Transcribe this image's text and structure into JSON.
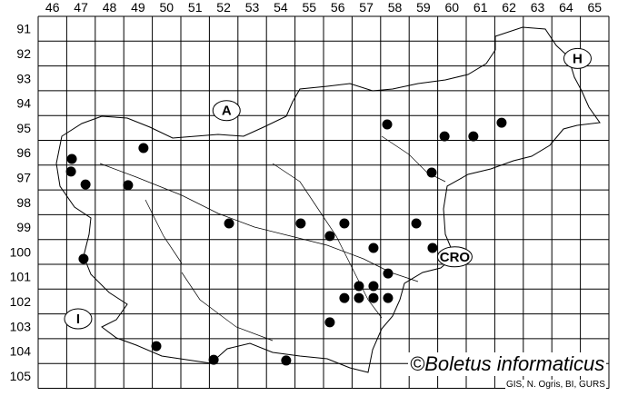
{
  "grid": {
    "columns": [
      "46",
      "47",
      "48",
      "49",
      "50",
      "51",
      "52",
      "53",
      "54",
      "55",
      "56",
      "57",
      "58",
      "59",
      "60",
      "61",
      "62",
      "63",
      "64",
      "65"
    ],
    "rows": [
      "91",
      "92",
      "93",
      "94",
      "95",
      "96",
      "97",
      "98",
      "99",
      "100",
      "101",
      "102",
      "103",
      "104",
      "105"
    ]
  },
  "country_labels": [
    {
      "text": "A",
      "col": 52.6,
      "row": 94.8
    },
    {
      "text": "H",
      "col": 64.9,
      "row": 92.7
    },
    {
      "text": "CRO",
      "col": 60.6,
      "row": 100.7
    },
    {
      "text": "I",
      "col": 47.4,
      "row": 103.2
    }
  ],
  "records": [
    {
      "col": 58.23,
      "row": 95.36
    },
    {
      "col": 60.24,
      "row": 95.84
    },
    {
      "col": 61.25,
      "row": 95.84
    },
    {
      "col": 62.24,
      "row": 95.29
    },
    {
      "col": 49.69,
      "row": 96.31
    },
    {
      "col": 47.18,
      "row": 96.75
    },
    {
      "col": 47.15,
      "row": 97.26
    },
    {
      "col": 47.66,
      "row": 97.78
    },
    {
      "col": 49.15,
      "row": 97.81
    },
    {
      "col": 59.79,
      "row": 97.3
    },
    {
      "col": 52.69,
      "row": 99.35
    },
    {
      "col": 55.2,
      "row": 99.35
    },
    {
      "col": 56.73,
      "row": 99.35
    },
    {
      "col": 56.22,
      "row": 99.86
    },
    {
      "col": 59.25,
      "row": 99.35
    },
    {
      "col": 57.75,
      "row": 100.34
    },
    {
      "col": 59.82,
      "row": 100.34
    },
    {
      "col": 47.59,
      "row": 100.78
    },
    {
      "col": 58.26,
      "row": 101.37
    },
    {
      "col": 57.24,
      "row": 101.88
    },
    {
      "col": 57.75,
      "row": 101.88
    },
    {
      "col": 56.73,
      "row": 102.36
    },
    {
      "col": 57.24,
      "row": 102.36
    },
    {
      "col": 57.75,
      "row": 102.36
    },
    {
      "col": 58.26,
      "row": 102.36
    },
    {
      "col": 56.22,
      "row": 103.34
    },
    {
      "col": 50.14,
      "row": 104.3
    },
    {
      "col": 52.15,
      "row": 104.85
    },
    {
      "col": 54.69,
      "row": 104.88
    }
  ],
  "copyright": "©Boletus informaticus",
  "credit": "GIS, N. Ogris, BI, GURS",
  "colors": {
    "lines": "#000000",
    "dots": "#000000",
    "background": "#ffffff"
  }
}
